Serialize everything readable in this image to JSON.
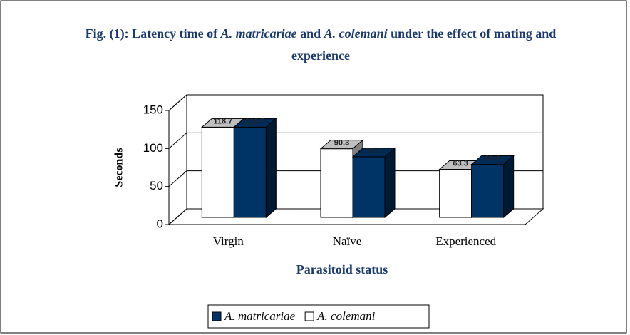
{
  "chart_data": {
    "type": "bar3d",
    "title": "Fig. (1): Latency time of A. matricariae and A. colemani under the effect of mating and experience",
    "x_label": "Parasitoid status",
    "y_label": "Seconds",
    "categories": [
      "Virgin",
      "Naïve",
      "Experienced"
    ],
    "series": [
      {
        "name": "A. colemani",
        "color": "#ffffff",
        "values": [
          118.7,
          90.3,
          63.3
        ]
      },
      {
        "name": "A. matricariae",
        "color": "#003366",
        "values": [
          118.7,
          79.8,
          69.8
        ]
      }
    ],
    "ylim": [
      0,
      150
    ],
    "yticks": [
      0,
      50,
      100,
      150
    ],
    "grid": true,
    "legend": "bottom"
  }
}
